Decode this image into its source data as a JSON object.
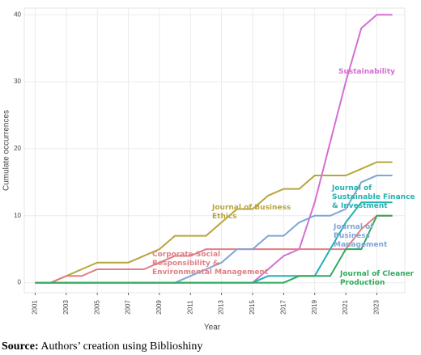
{
  "chart_data": {
    "type": "line",
    "x": [
      2001,
      2002,
      2003,
      2004,
      2005,
      2006,
      2007,
      2008,
      2009,
      2010,
      2011,
      2012,
      2013,
      2014,
      2015,
      2016,
      2017,
      2018,
      2019,
      2020,
      2021,
      2022,
      2023,
      2024
    ],
    "xlim": [
      2000.3,
      2024.8
    ],
    "xticks": [
      2001,
      2003,
      2005,
      2007,
      2009,
      2011,
      2013,
      2015,
      2017,
      2019,
      2021,
      2023
    ],
    "ylim": [
      -1.5,
      41
    ],
    "yticks": [
      0,
      10,
      20,
      30,
      40
    ],
    "xlabel": "Year",
    "ylabel": "Cumulate occurrences",
    "grid": true,
    "series": [
      {
        "name": "Sustainability",
        "color": "#d46fd4",
        "values": [
          0,
          0,
          0,
          0,
          0,
          0,
          0,
          0,
          0,
          0,
          0,
          0,
          0,
          0,
          0,
          2,
          4,
          5,
          12,
          21,
          30,
          38,
          40,
          40
        ]
      },
      {
        "name": "Journal of Business Ethics",
        "color": "#b8a63c",
        "values": [
          0,
          0,
          1,
          2,
          3,
          3,
          3,
          4,
          5,
          7,
          7,
          7,
          9,
          11,
          11,
          13,
          14,
          14,
          16,
          16,
          16,
          17,
          18,
          18
        ]
      },
      {
        "name": "Corporate Social Responsibility & Environmental Management",
        "color": "#e07f86",
        "values": [
          0,
          0,
          1,
          1,
          2,
          2,
          2,
          2,
          3,
          4,
          4,
          5,
          5,
          5,
          5,
          5,
          5,
          5,
          5,
          5,
          5,
          8,
          10,
          10
        ]
      },
      {
        "name": "Journal of Sustainable Finance & Investment",
        "color": "#22b2b0",
        "values": [
          0,
          0,
          0,
          0,
          0,
          0,
          0,
          0,
          0,
          0,
          0,
          0,
          0,
          0,
          0,
          1,
          1,
          1,
          1,
          5,
          9,
          12,
          12,
          12
        ]
      },
      {
        "name": "Journal of Business Management",
        "color": "#7ca7d6",
        "values": [
          0,
          0,
          0,
          0,
          0,
          0,
          0,
          0,
          0,
          0,
          1,
          2,
          3,
          5,
          5,
          7,
          7,
          9,
          10,
          10,
          11,
          15,
          16,
          16
        ]
      },
      {
        "name": "Journal of Cleaner Production",
        "color": "#2faa5c",
        "values": [
          0,
          0,
          0,
          0,
          0,
          0,
          0,
          0,
          0,
          0,
          0,
          0,
          0,
          0,
          0,
          0,
          0,
          1,
          1,
          1,
          5,
          5,
          10,
          10
        ]
      }
    ]
  },
  "source": {
    "label": "Source:",
    "text": "Authors’ creation using Biblioshiny"
  }
}
